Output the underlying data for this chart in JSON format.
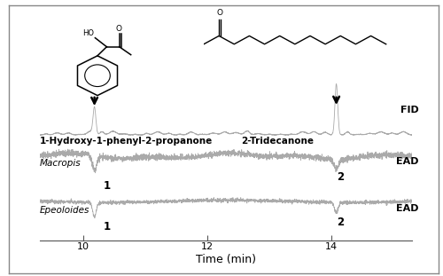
{
  "xlim": [
    9.3,
    15.3
  ],
  "xlabel": "Time (min)",
  "label_fid": "FID",
  "label_ead1": "EAD",
  "label_ead2": "EAD",
  "label_macropis": "Macropis",
  "label_epeoloides": "Epeoloides",
  "compound1_name": "1-Hydroxy-1-phenyl-2-propanone",
  "compound2_name": "2-Tridecanone",
  "compound1_time": 10.18,
  "compound2_time": 14.08,
  "peak1_label": "1",
  "peak2_label": "2",
  "background_color": "#ffffff",
  "line_color": "#aaaaaa",
  "border_color": "#888888",
  "seed": 77,
  "xticks": [
    10,
    12,
    14
  ],
  "xtick_labels": [
    "10",
    "12",
    "14"
  ]
}
